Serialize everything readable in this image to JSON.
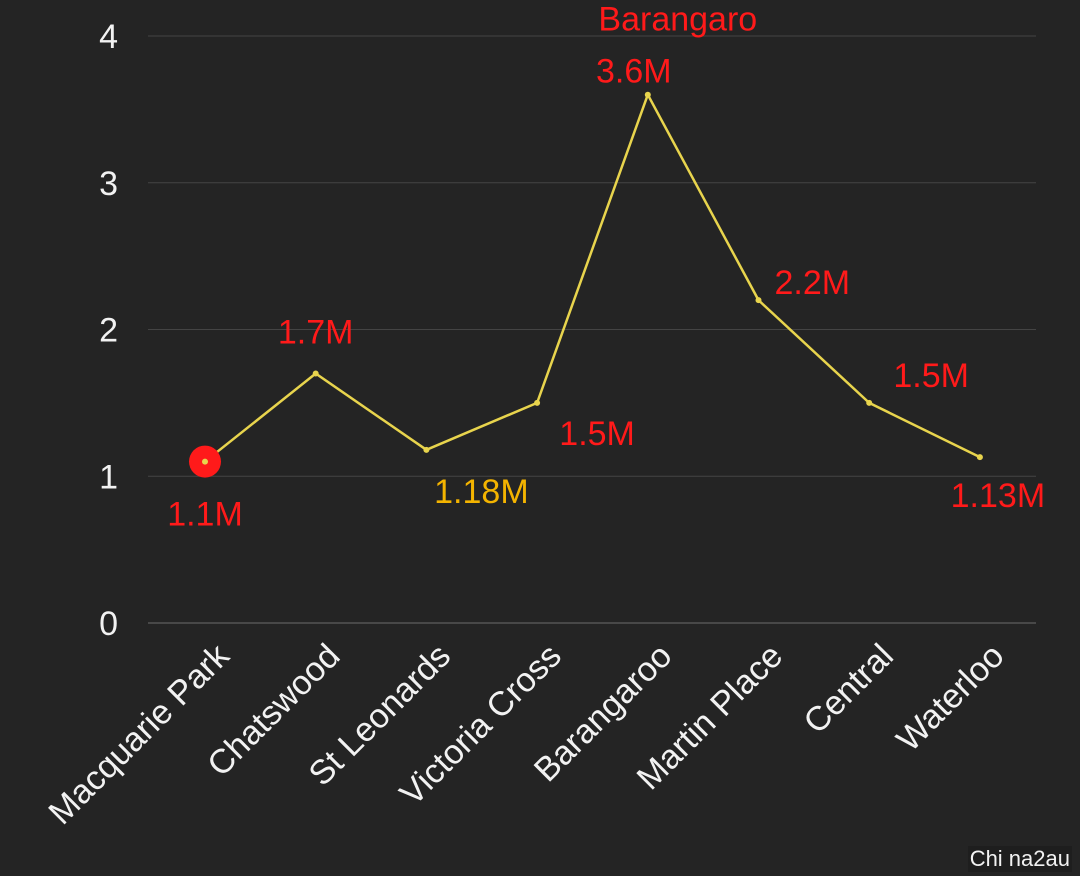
{
  "chart_data": {
    "type": "line",
    "categories": [
      "Macquarie Park",
      "Chatswood",
      "St Leonards",
      "Victoria Cross",
      "Barangaroo",
      "Martin Place",
      "Central",
      "Waterloo"
    ],
    "values": [
      1.1,
      1.7,
      1.18,
      1.5,
      3.6,
      2.2,
      1.5,
      1.13
    ],
    "data_labels": [
      "1.1M",
      "1.7M",
      "1.18M",
      "1.5M",
      "3.6M",
      "2.2M",
      "1.5M",
      "1.13M"
    ],
    "annotation": "Barangaro",
    "yticks": [
      "0",
      "1",
      "2",
      "3",
      "4"
    ],
    "ylim": [
      0,
      4
    ],
    "grid": true,
    "highlighted_category": "Macquarie Park"
  },
  "colors": {
    "background": "#242424",
    "line": "#e8d44d",
    "label_red": "#ff1a1a",
    "label_yellow": "#f4b400",
    "axis_text": "#f2f2f2",
    "grid": "#444444"
  },
  "watermark": "Chi na2au"
}
